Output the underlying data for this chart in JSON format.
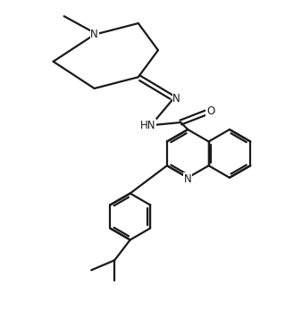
{
  "bg_color": "#ffffff",
  "line_color": "#1a1a1a",
  "line_width": 1.6,
  "font_size": 8.5,
  "figsize": [
    3.19,
    3.66
  ],
  "dpi": 100,
  "xlim": [
    0,
    10
  ],
  "ylim": [
    0,
    11.5
  ]
}
